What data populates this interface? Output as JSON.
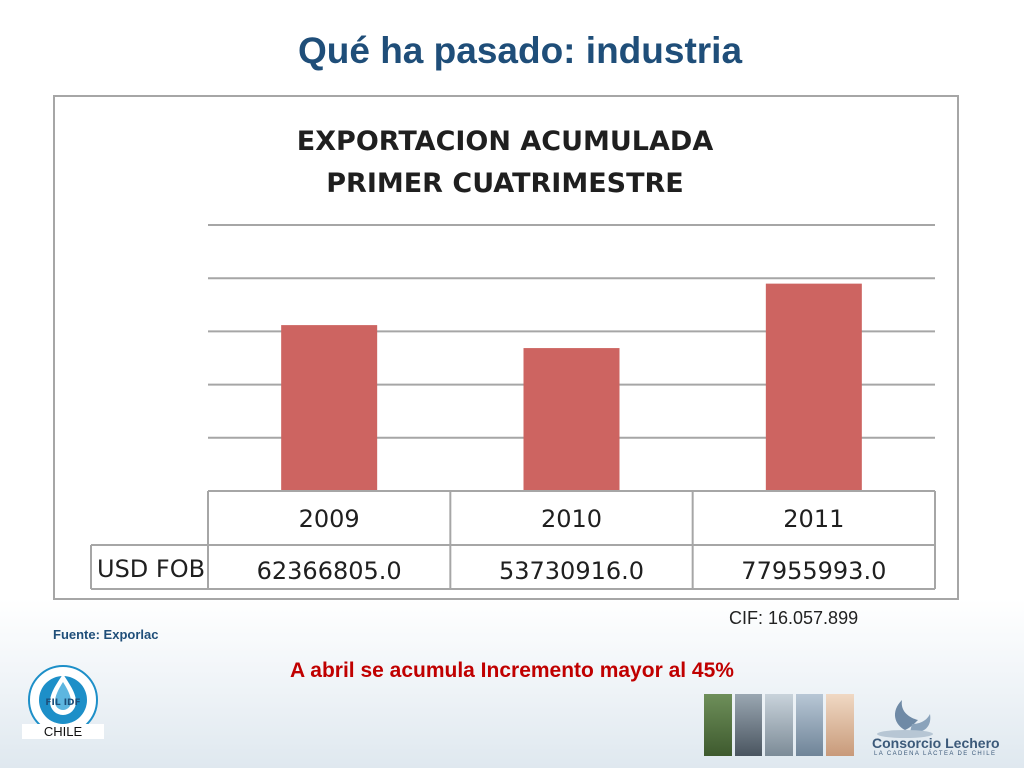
{
  "slide": {
    "title": "Qué ha pasado: industria",
    "source": "Fuente: Exporlac",
    "cif": "CIF: 16.057.899",
    "headline": "A abril se acumula Incremento mayor al 45%",
    "logo_left_label": "CHILE",
    "logo_left_text": "FIL IDF",
    "logo_right_name": "Consorcio Lechero",
    "logo_right_sub": "LA CADENA LÁCTEA DE CHILE"
  },
  "chart_data": {
    "type": "bar",
    "title_line1": "EXPORTACION ACUMULADA",
    "title_line2": "PRIMER CUATRIMESTRE",
    "categories": [
      "2009",
      "2010",
      "2011"
    ],
    "series": [
      {
        "name": "USD FOB",
        "values": [
          62366805.0,
          53730916.0,
          77955993.0
        ],
        "labels": [
          "62366805.0",
          "53730916.0",
          "77955993.0"
        ]
      }
    ],
    "ylim": [
      0,
      100000000
    ],
    "grid": true,
    "y_tick_labels_visible": false,
    "data_table": true,
    "colors": {
      "bar": "#cd6461",
      "grid": "#a6a6a6",
      "title": "#1f1f1f"
    }
  }
}
